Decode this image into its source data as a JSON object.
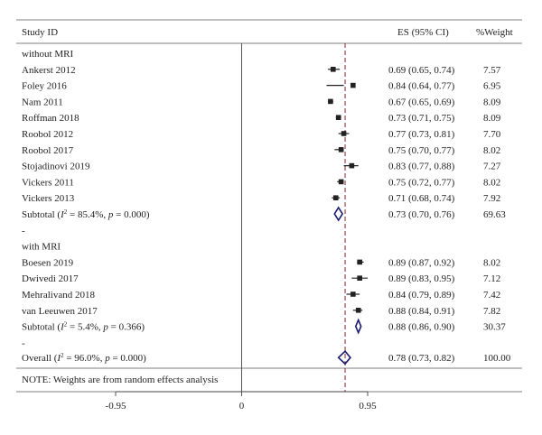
{
  "chart_data": {
    "type": "forest",
    "headers": {
      "study": "Study ID",
      "es": "ES (95% CI)",
      "weight": "%Weight"
    },
    "groups": [
      {
        "label": "without MRI",
        "studies": [
          {
            "name": "Ankerst 2012",
            "es": 0.69,
            "lo": 0.65,
            "hi": 0.74,
            "es_text": "0.69 (0.65, 0.74)",
            "weight_text": "7.57"
          },
          {
            "name": "Foley 2016",
            "es": 0.84,
            "lo": 0.64,
            "hi": 0.77,
            "es_text": "0.84 (0.64, 0.77)",
            "weight_text": "6.95"
          },
          {
            "name": "Nam 2011",
            "es": 0.67,
            "lo": 0.65,
            "hi": 0.69,
            "es_text": "0.67 (0.65, 0.69)",
            "weight_text": "8.09"
          },
          {
            "name": "Roffman 2018",
            "es": 0.73,
            "lo": 0.71,
            "hi": 0.75,
            "es_text": "0.73 (0.71, 0.75)",
            "weight_text": "8.09"
          },
          {
            "name": "Roobol 2012",
            "es": 0.77,
            "lo": 0.73,
            "hi": 0.81,
            "es_text": "0.77 (0.73, 0.81)",
            "weight_text": "7.70"
          },
          {
            "name": "Roobol 2017",
            "es": 0.75,
            "lo": 0.7,
            "hi": 0.77,
            "es_text": "0.75 (0.70, 0.77)",
            "weight_text": "8.02"
          },
          {
            "name": "Stojadinovi 2019",
            "es": 0.83,
            "lo": 0.77,
            "hi": 0.88,
            "es_text": "0.83 (0.77, 0.88)",
            "weight_text": "7.27"
          },
          {
            "name": "Vickers 2011",
            "es": 0.75,
            "lo": 0.72,
            "hi": 0.77,
            "es_text": "0.75 (0.72, 0.77)",
            "weight_text": "8.02"
          },
          {
            "name": "Vickers 2013",
            "es": 0.71,
            "lo": 0.68,
            "hi": 0.74,
            "es_text": "0.71 (0.68, 0.74)",
            "weight_text": "7.92"
          }
        ],
        "subtotal": {
          "label_prefix": "Subtotal (",
          "i2_symbol": "I",
          "i2_sup": "2",
          "label_mid": " = 85.4%, ",
          "p_symbol": "p",
          "label_suffix": " = 0.000)",
          "es": 0.73,
          "lo": 0.7,
          "hi": 0.76,
          "es_text": "0.73 (0.70, 0.76)",
          "weight_text": "69.63"
        }
      },
      {
        "label": "with MRI",
        "studies": [
          {
            "name": "Boesen 2019",
            "es": 0.89,
            "lo": 0.87,
            "hi": 0.92,
            "es_text": "0.89 (0.87, 0.92)",
            "weight_text": "8.02"
          },
          {
            "name": "Dwivedi 2017",
            "es": 0.89,
            "lo": 0.83,
            "hi": 0.95,
            "es_text": "0.89 (0.83, 0.95)",
            "weight_text": "7.12"
          },
          {
            "name": "Mehralivand 2018",
            "es": 0.84,
            "lo": 0.79,
            "hi": 0.89,
            "es_text": "0.84 (0.79, 0.89)",
            "weight_text": "7.42"
          },
          {
            "name": "van Leeuwen 2017",
            "es": 0.88,
            "lo": 0.84,
            "hi": 0.91,
            "es_text": "0.88 (0.84, 0.91)",
            "weight_text": "7.82"
          }
        ],
        "subtotal": {
          "label_prefix": "Subtotal (",
          "i2_symbol": "I",
          "i2_sup": "2",
          "label_mid": " = 5.4%, ",
          "p_symbol": "p",
          "label_suffix": " = 0.366)",
          "es": 0.88,
          "lo": 0.86,
          "hi": 0.9,
          "es_text": "0.88 (0.86, 0.90)",
          "weight_text": "30.37"
        }
      }
    ],
    "separator": "-",
    "overall": {
      "label_prefix": "Overall (",
      "i2_symbol": "I",
      "i2_sup": "2",
      "label_mid": " = 96.0%, ",
      "p_symbol": "p",
      "label_suffix": " = 0.000)",
      "es": 0.78,
      "lo": 0.73,
      "hi": 0.82,
      "es_text": "0.78 (0.73, 0.82)",
      "weight_text": "100.00"
    },
    "note": "NOTE: Weights are from random effects analysis",
    "axis": {
      "ticks": [
        -0.95,
        0,
        0.95
      ],
      "tick_labels": [
        "-0.95",
        "0",
        "0.95"
      ],
      "range": [
        -0.95,
        0.95
      ],
      "null_line": 0,
      "reference_line": 0.78
    },
    "colors": {
      "diamond": "#1a1a6e",
      "marker": "#222222",
      "reference": "#8b3a3a",
      "rule": "#555555"
    }
  }
}
